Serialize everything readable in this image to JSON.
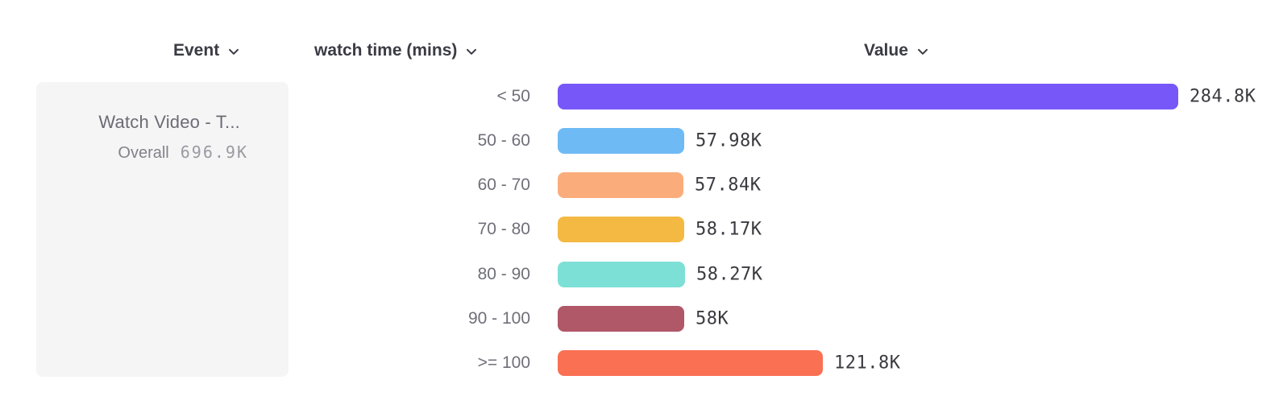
{
  "header": {
    "columns": [
      {
        "id": "event",
        "label": "Event"
      },
      {
        "id": "breakdown",
        "label": "watch time (mins)"
      },
      {
        "id": "value",
        "label": "Value"
      }
    ]
  },
  "event_card": {
    "title": "Watch Video - T...",
    "overall_label": "Overall",
    "overall_value": "696.9K"
  },
  "chart_data": {
    "type": "bar",
    "orientation": "horizontal",
    "title": "Watch Video - T... broken down by watch time (mins)",
    "categories": [
      "< 50",
      "50 - 60",
      "60 - 70",
      "70 - 80",
      "80 - 90",
      "90 - 100",
      ">= 100"
    ],
    "values": [
      284800,
      57980,
      57840,
      58170,
      58270,
      58000,
      121800
    ],
    "value_labels": [
      "284.8K",
      "57.98K",
      "57.84K",
      "58.17K",
      "58.27K",
      "58K",
      "121.8K"
    ],
    "overall_total": 696900,
    "bar_colors": [
      "#7757F8",
      "#6EBAF5",
      "#FAAD7B",
      "#F4B942",
      "#7DE0D6",
      "#B05768",
      "#FA7053"
    ],
    "xlim": [
      0,
      284800
    ],
    "grid": false,
    "legend_position": "left"
  },
  "icons": {
    "chevron_down": "chevron-down"
  },
  "colors": {
    "header_text": "#3b3b44",
    "label_text": "#6f6f79",
    "value_text": "#3a3a40",
    "card_bg": "#f5f5f6"
  }
}
